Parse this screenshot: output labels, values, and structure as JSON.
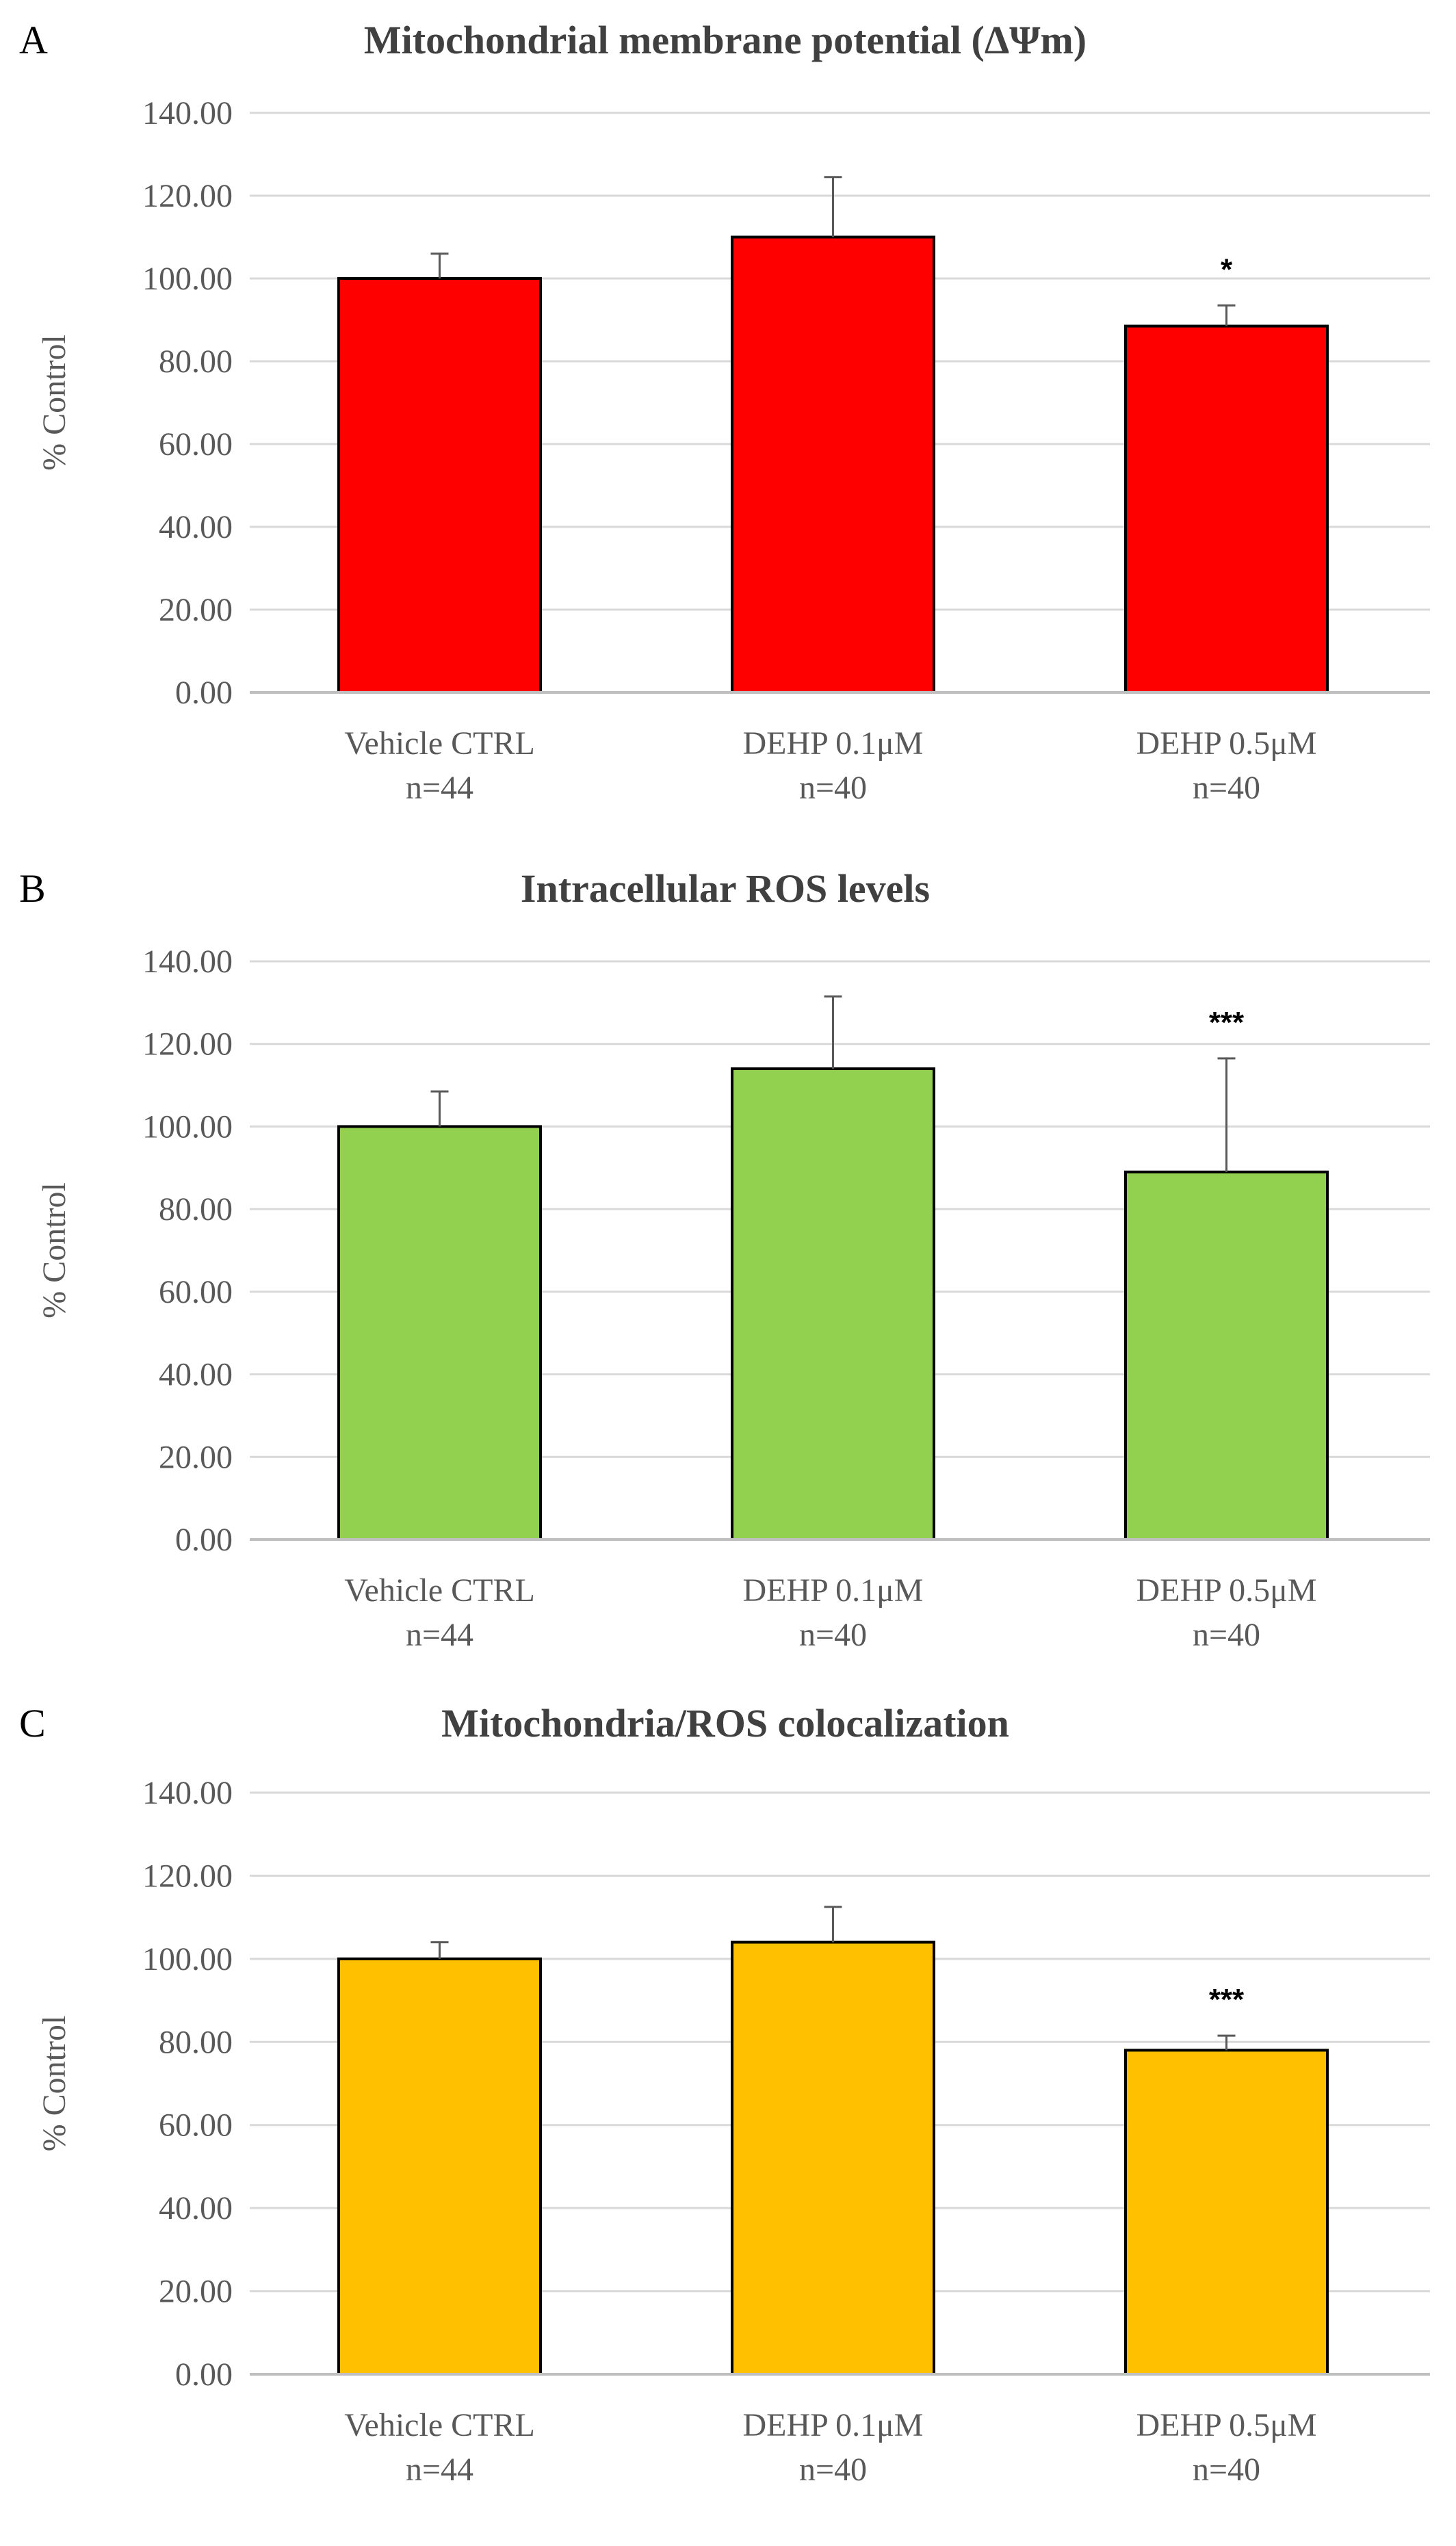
{
  "chart_data": [
    {
      "panel": "A",
      "type": "bar",
      "title": "Mitochondrial membrane potential (ΔΨm)",
      "ylabel": "% Control",
      "xlabel": "",
      "ylim": [
        0,
        140
      ],
      "yticks": [
        "0.00",
        "20.00",
        "40.00",
        "60.00",
        "80.00",
        "100.00",
        "120.00",
        "140.00"
      ],
      "grid": true,
      "bar_color": "#ff0000",
      "categories": [
        {
          "line1": "Vehicle CTRL",
          "line2": "n=44"
        },
        {
          "line1": "DEHP 0.1μM",
          "line2": "n=40"
        },
        {
          "line1": "DEHP 0.5μM",
          "line2": "n=40"
        }
      ],
      "values": [
        100,
        110,
        88.5
      ],
      "errors": [
        6,
        14.5,
        5
      ],
      "significance": [
        "",
        "",
        "*"
      ]
    },
    {
      "panel": "B",
      "type": "bar",
      "title": "Intracellular ROS levels",
      "ylabel": "% Control",
      "xlabel": "",
      "ylim": [
        0,
        140
      ],
      "yticks": [
        "0.00",
        "20.00",
        "40.00",
        "60.00",
        "80.00",
        "100.00",
        "120.00",
        "140.00"
      ],
      "grid": true,
      "bar_color": "#92d050",
      "categories": [
        {
          "line1": "Vehicle CTRL",
          "line2": "n=44"
        },
        {
          "line1": "DEHP 0.1μM",
          "line2": "n=40"
        },
        {
          "line1": "DEHP 0.5μM",
          "line2": "n=40"
        }
      ],
      "values": [
        100,
        114,
        89
      ],
      "errors": [
        8.5,
        17.5,
        27.5
      ],
      "significance": [
        "",
        "",
        "***"
      ]
    },
    {
      "panel": "C",
      "type": "bar",
      "title": "Mitochondria/ROS colocalization",
      "ylabel": "% Control",
      "xlabel": "",
      "ylim": [
        0,
        140
      ],
      "yticks": [
        "0.00",
        "20.00",
        "40.00",
        "60.00",
        "80.00",
        "100.00",
        "120.00",
        "140.00"
      ],
      "grid": true,
      "bar_color": "#ffc000",
      "categories": [
        {
          "line1": "Vehicle CTRL",
          "line2": "n=44"
        },
        {
          "line1": "DEHP 0.1μM",
          "line2": "n=40"
        },
        {
          "line1": "DEHP 0.5μM",
          "line2": "n=40"
        }
      ],
      "values": [
        100,
        104,
        78
      ],
      "errors": [
        4,
        8.5,
        3.5
      ],
      "significance": [
        "",
        "",
        "***"
      ]
    }
  ]
}
